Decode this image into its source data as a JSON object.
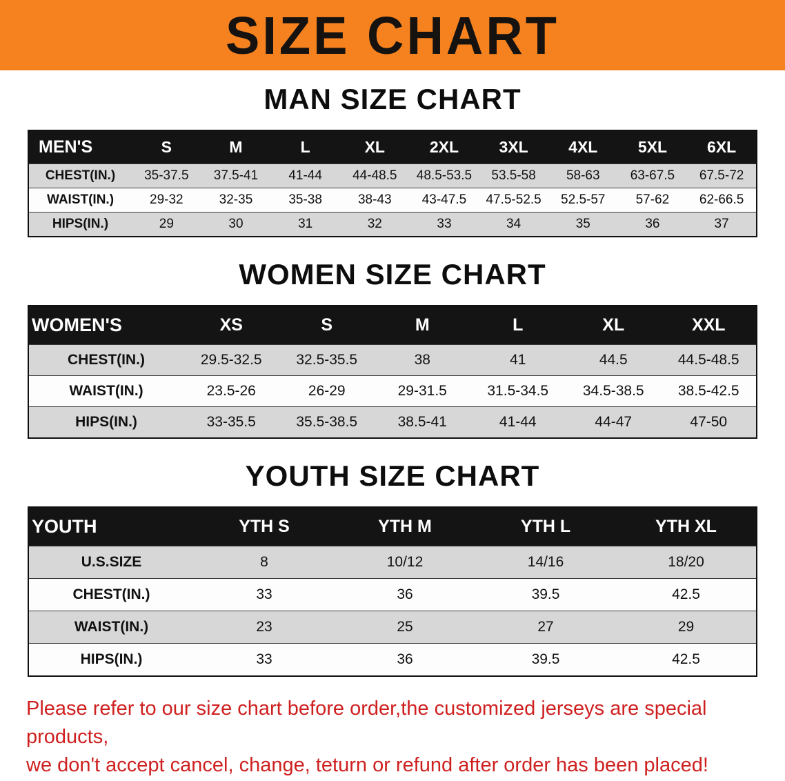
{
  "banner": {
    "title": "SIZE CHART"
  },
  "colors": {
    "banner-bg": "#f6821f",
    "header-bg": "#141414",
    "row-gray": "#d7d7d7",
    "footer-red": "#cf2020"
  },
  "sections": [
    {
      "heading": "MAN SIZE CHART",
      "table": {
        "header": [
          "MEN'S",
          "S",
          "M",
          "L",
          "XL",
          "2XL",
          "3XL",
          "4XL",
          "5XL",
          "6XL"
        ],
        "rows": [
          [
            "CHEST(IN.)",
            "35-37.5",
            "37.5-41",
            "41-44",
            "44-48.5",
            "48.5-53.5",
            "53.5-58",
            "58-63",
            "63-67.5",
            "67.5-72"
          ],
          [
            "WAIST(IN.)",
            "29-32",
            "32-35",
            "35-38",
            "38-43",
            "43-47.5",
            "47.5-52.5",
            "52.5-57",
            "57-62",
            "62-66.5"
          ],
          [
            "HIPS(IN.)",
            "29",
            "30",
            "31",
            "32",
            "33",
            "34",
            "35",
            "36",
            "37"
          ]
        ]
      }
    },
    {
      "heading": "WOMEN SIZE CHART",
      "table": {
        "header": [
          "WOMEN'S",
          "XS",
          "S",
          "M",
          "L",
          "XL",
          "XXL"
        ],
        "rows": [
          [
            "CHEST(IN.)",
            "29.5-32.5",
            "32.5-35.5",
            "38",
            "41",
            "44.5",
            "44.5-48.5"
          ],
          [
            "WAIST(IN.)",
            "23.5-26",
            "26-29",
            "29-31.5",
            "31.5-34.5",
            "34.5-38.5",
            "38.5-42.5"
          ],
          [
            "HIPS(IN.)",
            "33-35.5",
            "35.5-38.5",
            "38.5-41",
            "41-44",
            "44-47",
            "47-50"
          ]
        ]
      }
    },
    {
      "heading": "YOUTH SIZE CHART",
      "table": {
        "header": [
          "YOUTH",
          "YTH S",
          "YTH M",
          "YTH L",
          "YTH XL"
        ],
        "rows": [
          [
            "U.S.SIZE",
            "8",
            "10/12",
            "14/16",
            "18/20"
          ],
          [
            "CHEST(IN.)",
            "33",
            "36",
            "39.5",
            "42.5"
          ],
          [
            "WAIST(IN.)",
            "23",
            "25",
            "27",
            "29"
          ],
          [
            "HIPS(IN.)",
            "33",
            "36",
            "39.5",
            "42.5"
          ]
        ]
      }
    }
  ],
  "footer": {
    "line1": "Please refer to our size chart before order,the customized jerseys are special products,",
    "line2": "we don't accept cancel, change, teturn or refund after order has been placed!"
  }
}
